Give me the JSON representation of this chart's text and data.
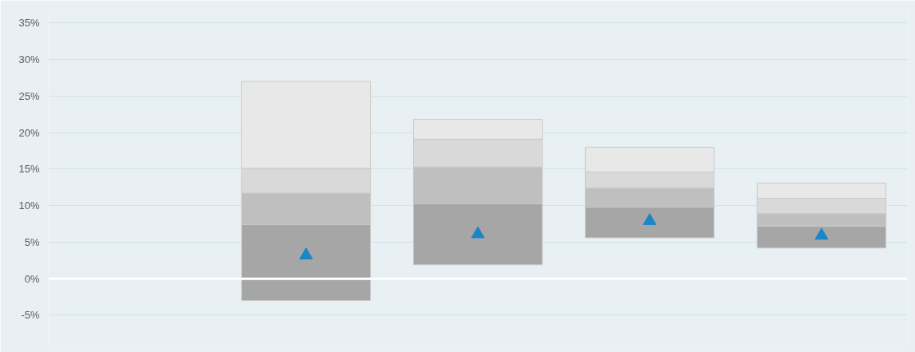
{
  "chart_data": {
    "type": "bar",
    "categories": [
      null,
      null,
      null,
      null,
      null
    ],
    "series": [
      {
        "color": "#a6a6a6",
        "base": [
          null,
          -3.0,
          1.9,
          5.6,
          4.2
        ],
        "values": [
          null,
          10.4,
          8.4,
          4.2,
          3.0
        ]
      },
      {
        "color": "#bfbfbf",
        "base": [
          null,
          7.4,
          10.3,
          9.8,
          7.2
        ],
        "values": [
          null,
          4.3,
          5.0,
          2.6,
          1.7
        ]
      },
      {
        "color": "#d9d9d9",
        "base": [
          null,
          11.7,
          15.3,
          12.4,
          8.9
        ],
        "values": [
          null,
          3.4,
          3.8,
          2.2,
          2.1
        ]
      },
      {
        "color": "#e8e8e8",
        "base": [
          null,
          15.1,
          19.1,
          14.6,
          11.0
        ],
        "values": [
          null,
          11.9,
          2.7,
          3.4,
          2.1
        ]
      },
      {
        "type": "scatter",
        "marker": "triangle",
        "color": "#1a86c8",
        "values": [
          null,
          3.2,
          6.1,
          7.9,
          5.9
        ]
      }
    ],
    "ylim": [
      -9,
      37
    ],
    "yticks": [
      {
        "value": -5,
        "label": "-5%"
      },
      {
        "value": 0,
        "label": "0%"
      },
      {
        "value": 5,
        "label": "5%"
      },
      {
        "value": 10,
        "label": "10%"
      },
      {
        "value": 15,
        "label": "15%"
      },
      {
        "value": 20,
        "label": "20%"
      },
      {
        "value": 25,
        "label": "25%"
      },
      {
        "value": 30,
        "label": "30%"
      },
      {
        "value": 35,
        "label": "35%"
      }
    ],
    "grid": "y",
    "ref_lines": [
      {
        "axis": "y",
        "value": 0,
        "color": "#ffffff"
      }
    ]
  }
}
